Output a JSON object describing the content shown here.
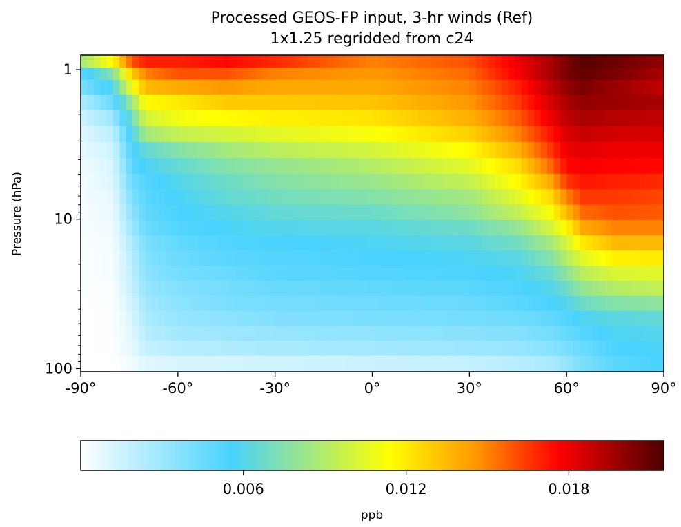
{
  "chart_data": {
    "type": "heatmap",
    "title": "Processed GEOS-FP input, 3-hr winds (Ref)",
    "subtitle": "1x1.25 regridded from c24",
    "xlabel": "",
    "ylabel": "Pressure (hPa)",
    "x_range": [
      -90,
      90
    ],
    "y_range_hPa": [
      105,
      0.8
    ],
    "y_scale": "log",
    "y_inverted": true,
    "x_ticks": [
      {
        "value": -90,
        "label": "-90°"
      },
      {
        "value": -60,
        "label": "-60°"
      },
      {
        "value": -30,
        "label": "-30°"
      },
      {
        "value": 0,
        "label": "0°"
      },
      {
        "value": 30,
        "label": "30°"
      },
      {
        "value": 60,
        "label": "60°"
      },
      {
        "value": 90,
        "label": "90°"
      }
    ],
    "y_ticks": [
      {
        "value": 1,
        "label": "1"
      },
      {
        "value": 10,
        "label": "10"
      },
      {
        "value": 100,
        "label": "100"
      }
    ],
    "colorbar": {
      "label": "ppb",
      "range": [
        0,
        0.0215
      ],
      "ticks": [
        {
          "value": 0.006,
          "label": "0.006"
        },
        {
          "value": 0.012,
          "label": "0.012"
        },
        {
          "value": 0.018,
          "label": "0.018"
        }
      ],
      "colormap": [
        "#ffffff",
        "#48d2fd",
        "#ffff00",
        "#ff9500",
        "#ff0000",
        "#4d0000"
      ],
      "colormap_stops": [
        0,
        0.26,
        0.53,
        0.68,
        0.82,
        1.0
      ]
    },
    "grid": false,
    "levels_hPa": [
      0.9,
      1.05,
      1.3,
      1.65,
      2.1,
      2.7,
      3.45,
      4.4,
      5.6,
      7.1,
      9.0,
      11.4,
      14.4,
      18.2,
      23.0,
      29.0,
      36.6,
      46.1,
      58.0,
      73.0,
      92.0
    ],
    "profile_x": [
      -90,
      -80,
      -74,
      -70,
      -60,
      -45,
      -30,
      0,
      30,
      45,
      55,
      60,
      65,
      75,
      90
    ],
    "profiles": [
      {
        "p": 0.9,
        "values": [
          0.0085,
          0.0115,
          0.016,
          0.017,
          0.017,
          0.0175,
          0.0168,
          0.015,
          0.016,
          0.018,
          0.0195,
          0.0205,
          0.0212,
          0.0208,
          0.02
        ]
      },
      {
        "p": 1.05,
        "values": [
          0.005,
          0.0075,
          0.013,
          0.015,
          0.016,
          0.016,
          0.015,
          0.0145,
          0.0155,
          0.0178,
          0.0195,
          0.0205,
          0.021,
          0.0205,
          0.0195
        ]
      },
      {
        "p": 1.3,
        "values": [
          0.004,
          0.006,
          0.011,
          0.0135,
          0.014,
          0.0145,
          0.014,
          0.014,
          0.015,
          0.017,
          0.019,
          0.02,
          0.0205,
          0.0198,
          0.019
        ]
      },
      {
        "p": 1.65,
        "values": [
          0.0025,
          0.0045,
          0.0085,
          0.0115,
          0.012,
          0.013,
          0.013,
          0.0132,
          0.0145,
          0.0165,
          0.0185,
          0.0195,
          0.02,
          0.0198,
          0.0195
        ]
      },
      {
        "p": 2.1,
        "values": [
          0.0015,
          0.003,
          0.007,
          0.01,
          0.011,
          0.0115,
          0.0118,
          0.0122,
          0.0138,
          0.0158,
          0.018,
          0.019,
          0.0195,
          0.0192,
          0.019
        ]
      },
      {
        "p": 2.7,
        "values": [
          0.001,
          0.002,
          0.006,
          0.0085,
          0.0095,
          0.01,
          0.0105,
          0.0112,
          0.0128,
          0.015,
          0.0172,
          0.0185,
          0.0188,
          0.0186,
          0.0185
        ]
      },
      {
        "p": 3.45,
        "values": [
          0.0008,
          0.0015,
          0.0055,
          0.0065,
          0.0075,
          0.0085,
          0.0092,
          0.01,
          0.0115,
          0.0138,
          0.0165,
          0.018,
          0.0182,
          0.018,
          0.018
        ]
      },
      {
        "p": 4.4,
        "values": [
          0.0005,
          0.0012,
          0.005,
          0.0058,
          0.0065,
          0.0075,
          0.008,
          0.009,
          0.0105,
          0.0125,
          0.0155,
          0.0175,
          0.0178,
          0.0176,
          0.0175
        ]
      },
      {
        "p": 5.6,
        "values": [
          0.0004,
          0.001,
          0.0045,
          0.0052,
          0.006,
          0.0068,
          0.0075,
          0.0082,
          0.0095,
          0.0115,
          0.014,
          0.0165,
          0.0172,
          0.017,
          0.0168
        ]
      },
      {
        "p": 7.1,
        "values": [
          0.0003,
          0.0008,
          0.004,
          0.005,
          0.0057,
          0.0065,
          0.007,
          0.0075,
          0.0085,
          0.0105,
          0.0125,
          0.015,
          0.0165,
          0.0165,
          0.0162
        ]
      },
      {
        "p": 9.0,
        "values": [
          0.0002,
          0.0006,
          0.0035,
          0.0048,
          0.0055,
          0.006,
          0.0065,
          0.0068,
          0.0078,
          0.0095,
          0.0112,
          0.0135,
          0.0155,
          0.016,
          0.0158
        ]
      },
      {
        "p": 11.4,
        "values": [
          0.0002,
          0.0005,
          0.003,
          0.0045,
          0.0052,
          0.0057,
          0.006,
          0.0062,
          0.0068,
          0.008,
          0.01,
          0.0115,
          0.014,
          0.015,
          0.015
        ]
      },
      {
        "p": 14.4,
        "values": [
          0.0001,
          0.0004,
          0.0025,
          0.004,
          0.0048,
          0.0053,
          0.0055,
          0.0058,
          0.0062,
          0.007,
          0.0085,
          0.01,
          0.012,
          0.0135,
          0.0135
        ]
      },
      {
        "p": 18.2,
        "values": [
          0.0001,
          0.0003,
          0.0022,
          0.0038,
          0.0045,
          0.005,
          0.0052,
          0.0055,
          0.0058,
          0.0062,
          0.0075,
          0.009,
          0.0105,
          0.0118,
          0.012
        ]
      },
      {
        "p": 23.0,
        "values": [
          0.0001,
          0.0003,
          0.002,
          0.0035,
          0.0042,
          0.0046,
          0.005,
          0.0052,
          0.0054,
          0.0058,
          0.0066,
          0.0078,
          0.0092,
          0.0102,
          0.0105
        ]
      },
      {
        "p": 29.0,
        "values": [
          0.0001,
          0.0002,
          0.0018,
          0.0032,
          0.0038,
          0.0042,
          0.0046,
          0.0048,
          0.005,
          0.0054,
          0.006,
          0.0068,
          0.008,
          0.009,
          0.0095
        ]
      },
      {
        "p": 36.6,
        "values": [
          0.0,
          0.0002,
          0.0015,
          0.0028,
          0.0035,
          0.004,
          0.0042,
          0.0044,
          0.0046,
          0.005,
          0.0055,
          0.006,
          0.0068,
          0.0075,
          0.0078
        ]
      },
      {
        "p": 46.1,
        "values": [
          0.0,
          0.0001,
          0.0012,
          0.0025,
          0.0032,
          0.0035,
          0.0038,
          0.004,
          0.0042,
          0.0044,
          0.0048,
          0.0052,
          0.0058,
          0.0062,
          0.0065
        ]
      },
      {
        "p": 58.0,
        "values": [
          0.0,
          0.0001,
          0.001,
          0.0022,
          0.0028,
          0.003,
          0.0032,
          0.0034,
          0.0036,
          0.0038,
          0.0042,
          0.0046,
          0.0052,
          0.0058,
          0.006
        ]
      },
      {
        "p": 73.0,
        "values": [
          0.0,
          0.0001,
          0.0008,
          0.0018,
          0.0022,
          0.0024,
          0.0026,
          0.0028,
          0.003,
          0.0032,
          0.0036,
          0.004,
          0.0046,
          0.0054,
          0.0058
        ]
      },
      {
        "p": 92.0,
        "values": [
          0.0,
          0.0,
          0.0005,
          0.001,
          0.0012,
          0.0013,
          0.0014,
          0.0016,
          0.0018,
          0.0022,
          0.0026,
          0.0032,
          0.004,
          0.005,
          0.0056
        ]
      }
    ]
  }
}
